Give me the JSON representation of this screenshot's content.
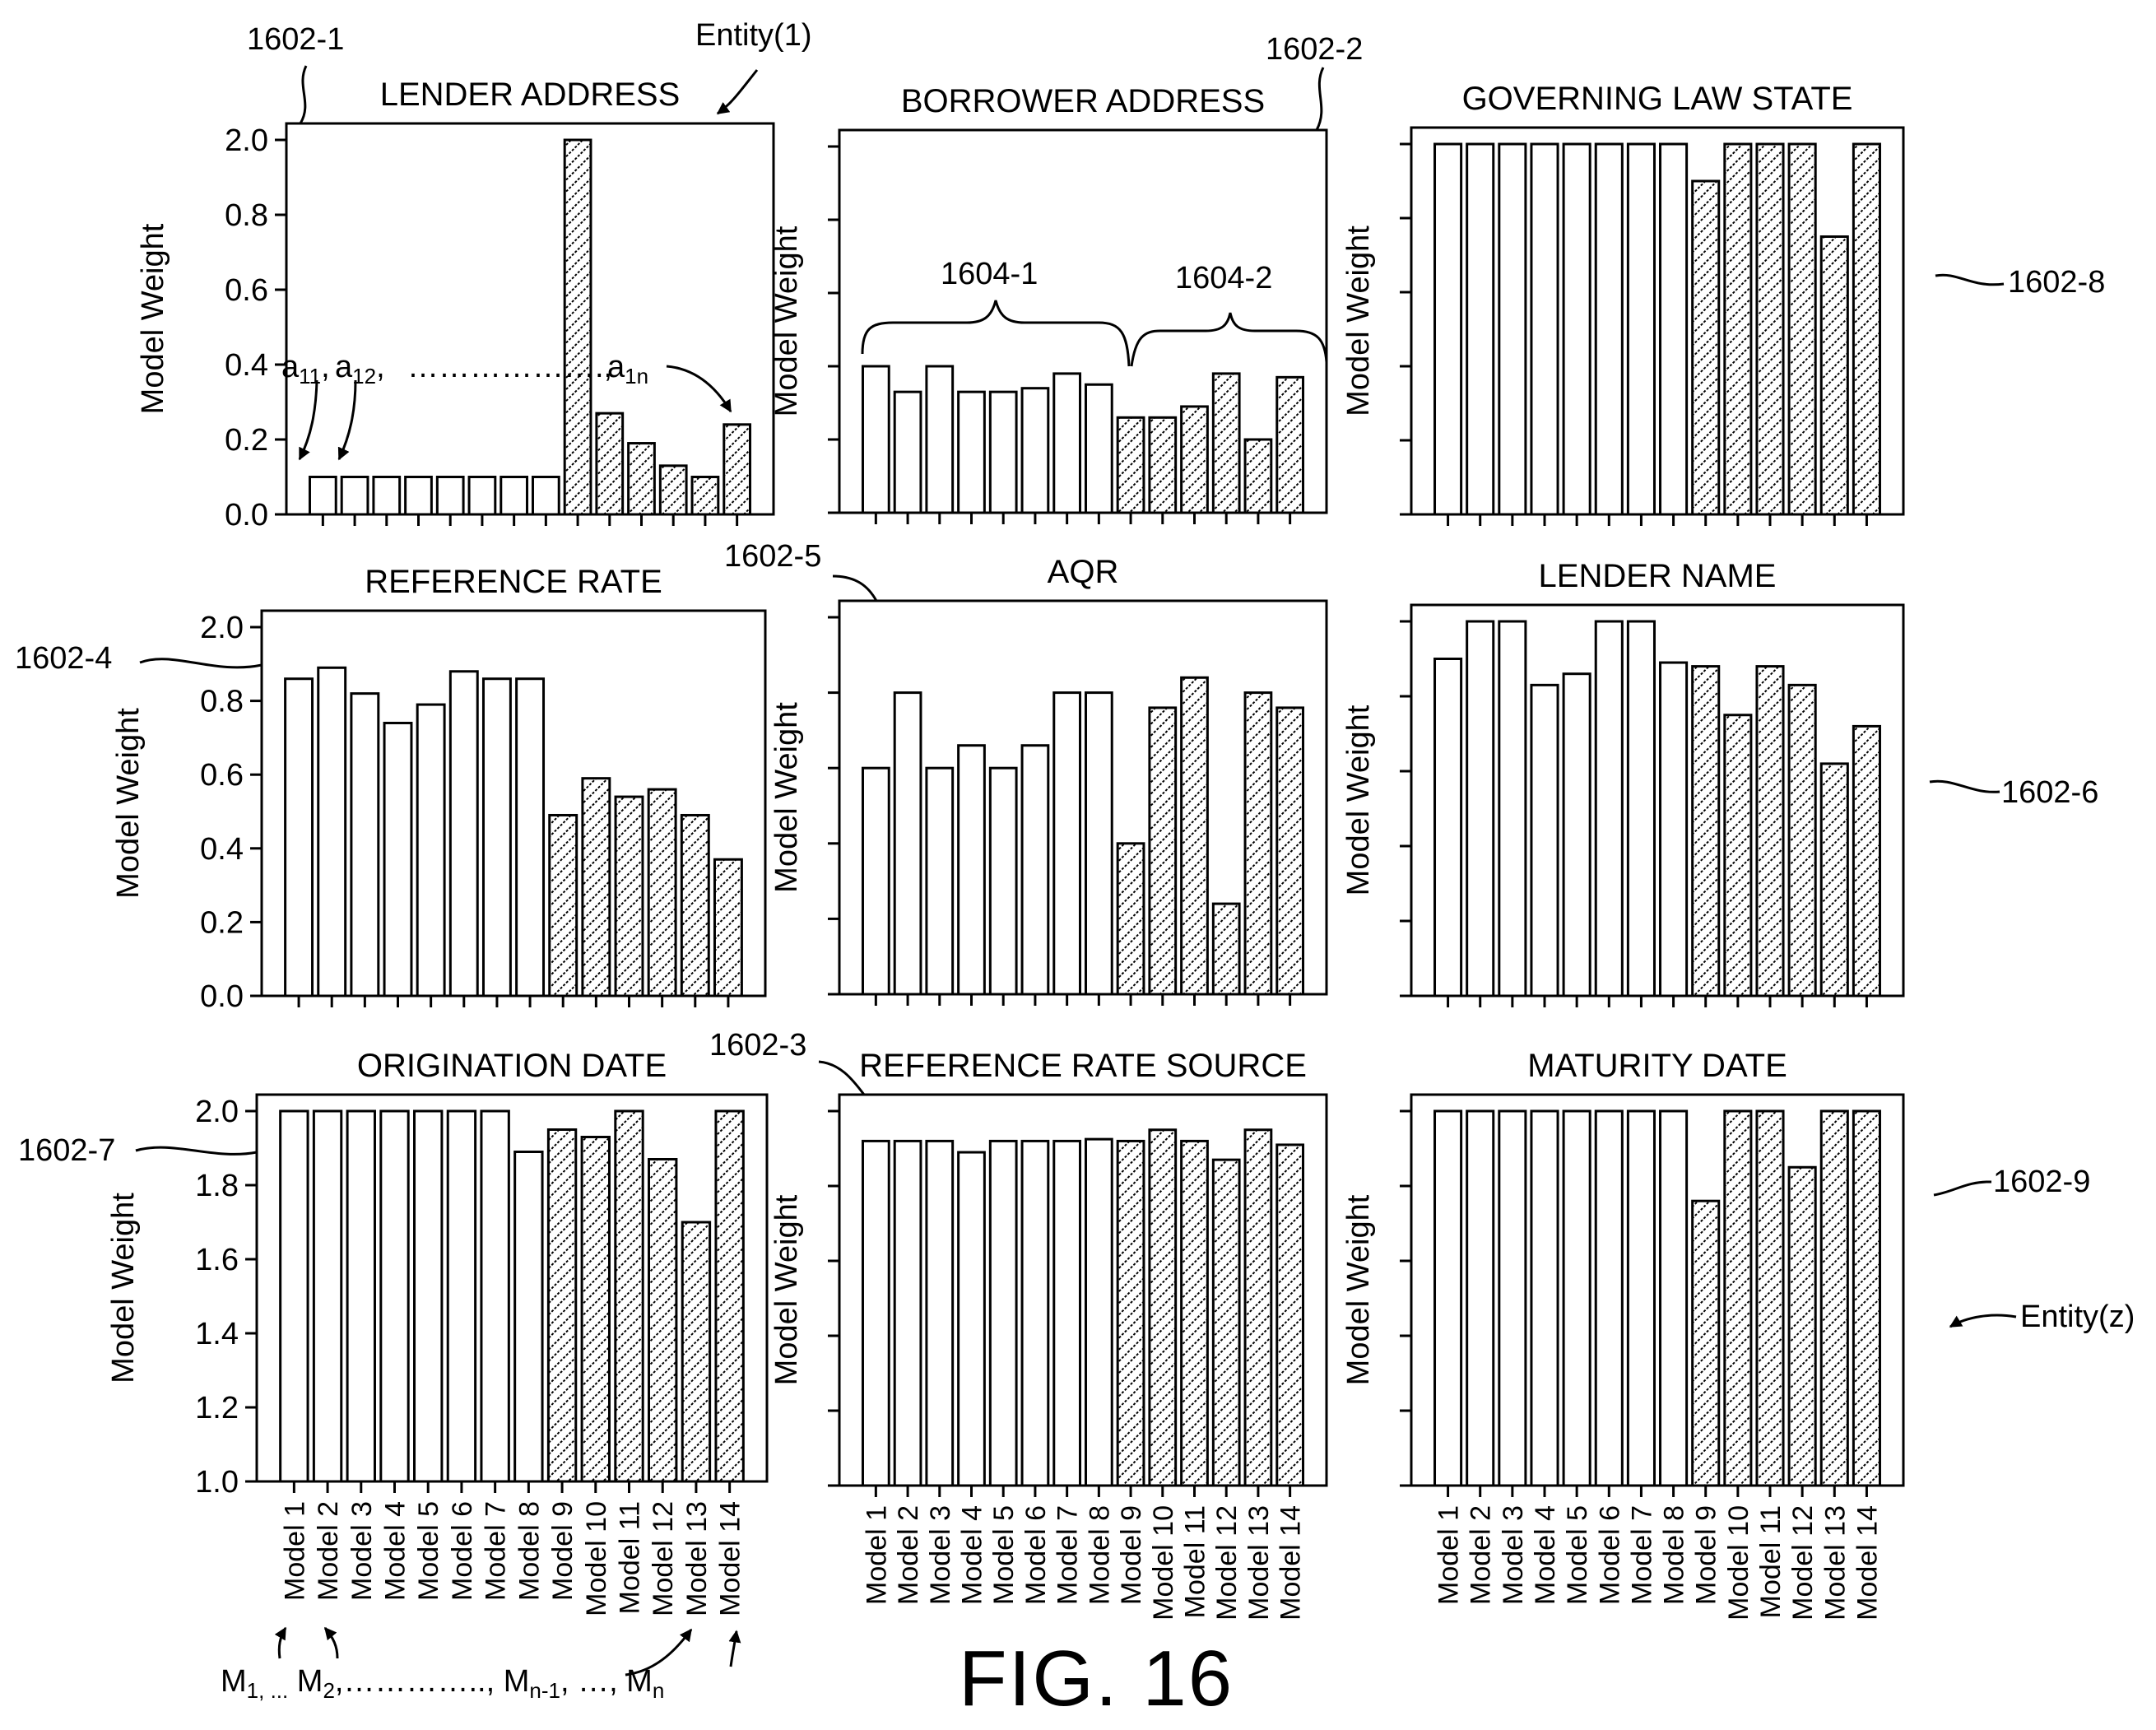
{
  "figure": {
    "caption": "FIG. 16",
    "tick_labels_y": [
      "0.0",
      "0.2",
      "0.4",
      "0.6",
      "0.8",
      "2.0"
    ],
    "tick_labels_y_bottom": [
      "1.0",
      "1.2",
      "1.4",
      "1.6",
      "1.8",
      "2.0"
    ],
    "model_labels": [
      "Model 1",
      "Model 2",
      "Model 3",
      "Model 4",
      "Model 5",
      "Model 6",
      "Model 7",
      "Model 8",
      "Model 9",
      "Model 10",
      "Model 11",
      "Model 12",
      "Model 13",
      "Model 14"
    ],
    "annotations": {
      "entity_1": "Entity(1)",
      "entity_z": "Entity(z)",
      "ref_1602_1": "1602-1",
      "ref_1602_2": "1602-2",
      "ref_1602_3": "1602-3",
      "ref_1602_4": "1602-4",
      "ref_1602_5": "1602-5",
      "ref_1602_6": "1602-6",
      "ref_1602_7": "1602-7",
      "ref_1602_8": "1602-8",
      "ref_1602_9": "1602-9",
      "ref_1604_1": "1604-1",
      "ref_1604_2": "1604-2",
      "a_11": "a11",
      "a_12": "a12",
      "a_dots": ", ……………….,",
      "a_1n": "a1n",
      "m_sequence": "M1, ... M2,………….., Mn-1, …, Mn"
    },
    "colors": {
      "ink": "#000000",
      "background": "#ffffff",
      "hatch": "#000000"
    }
  },
  "chart_data": [
    {
      "id": "1602-1",
      "type": "bar",
      "title": "LENDER ADDRESS",
      "ylabel": "Model Weight",
      "ylim": [
        0,
        1.0
      ],
      "categories": [
        "Model 1",
        "Model 2",
        "Model 3",
        "Model 4",
        "Model 5",
        "Model 6",
        "Model 7",
        "Model 8",
        "Model 9",
        "Model 10",
        "Model 11",
        "Model 12",
        "Model 13",
        "Model 14"
      ],
      "values": [
        0.1,
        0.1,
        0.1,
        0.1,
        0.1,
        0.1,
        0.1,
        0.1,
        1.0,
        0.27,
        0.19,
        0.13,
        0.1,
        0.24
      ],
      "hatched_from_index": 8
    },
    {
      "id": "1602-2",
      "type": "bar",
      "title": "BORROWER ADDRESS",
      "ylabel": "Model Weight",
      "ylim": [
        0,
        1.0
      ],
      "categories": [
        "Model 1",
        "Model 2",
        "Model 3",
        "Model 4",
        "Model 5",
        "Model 6",
        "Model 7",
        "Model 8",
        "Model 9",
        "Model 10",
        "Model 11",
        "Model 12",
        "Model 13",
        "Model 14"
      ],
      "values": [
        0.4,
        0.33,
        0.4,
        0.33,
        0.33,
        0.34,
        0.38,
        0.35,
        0.26,
        0.26,
        0.29,
        0.38,
        0.2,
        0.37
      ],
      "hatched_from_index": 8
    },
    {
      "id": "1602-8",
      "type": "bar",
      "title": "GOVERNING LAW STATE",
      "ylabel": "Model Weight",
      "ylim": [
        0,
        1.0
      ],
      "categories": [
        "Model 1",
        "Model 2",
        "Model 3",
        "Model 4",
        "Model 5",
        "Model 6",
        "Model 7",
        "Model 8",
        "Model 9",
        "Model 10",
        "Model 11",
        "Model 12",
        "Model 13",
        "Model 14"
      ],
      "values": [
        1.0,
        1.0,
        1.0,
        1.0,
        1.0,
        1.0,
        1.0,
        1.0,
        0.9,
        1.0,
        1.0,
        1.0,
        0.75,
        1.0
      ],
      "hatched_from_index": 8
    },
    {
      "id": "1602-4",
      "type": "bar",
      "title": "REFERENCE RATE",
      "ylabel": "Model Weight",
      "ylim": [
        0,
        1.0
      ],
      "categories": [
        "Model 1",
        "Model 2",
        "Model 3",
        "Model 4",
        "Model 5",
        "Model 6",
        "Model 7",
        "Model 8",
        "Model 9",
        "Model 10",
        "Model 11",
        "Model 12",
        "Model 13",
        "Model 14"
      ],
      "values": [
        0.86,
        0.89,
        0.82,
        0.74,
        0.79,
        0.88,
        0.86,
        0.86,
        0.49,
        0.59,
        0.54,
        0.56,
        0.49,
        0.37
      ],
      "hatched_from_index": 8
    },
    {
      "id": "1602-5",
      "type": "bar",
      "title": "AQR",
      "ylabel": "Model Weight",
      "ylim": [
        0,
        1.0
      ],
      "categories": [
        "Model 1",
        "Model 2",
        "Model 3",
        "Model 4",
        "Model 5",
        "Model 6",
        "Model 7",
        "Model 8",
        "Model 9",
        "Model 10",
        "Model 11",
        "Model 12",
        "Model 13",
        "Model 14"
      ],
      "values": [
        0.6,
        0.8,
        0.6,
        0.66,
        0.6,
        0.66,
        0.8,
        0.8,
        0.4,
        0.76,
        0.84,
        0.24,
        0.8,
        0.76
      ],
      "hatched_from_index": 8
    },
    {
      "id": "1602-6",
      "type": "bar",
      "title": "LENDER NAME",
      "ylabel": "Model Weight",
      "ylim": [
        0,
        1.0
      ],
      "categories": [
        "Model 1",
        "Model 2",
        "Model 3",
        "Model 4",
        "Model 5",
        "Model 6",
        "Model 7",
        "Model 8",
        "Model 9",
        "Model 10",
        "Model 11",
        "Model 12",
        "Model 13",
        "Model 14"
      ],
      "values": [
        0.9,
        1.0,
        1.0,
        0.83,
        0.86,
        1.0,
        1.0,
        0.89,
        0.88,
        0.75,
        0.88,
        0.83,
        0.62,
        0.72
      ],
      "hatched_from_index": 8
    },
    {
      "id": "1602-7",
      "type": "bar",
      "title": "ORIGINATION DATE",
      "ylabel": "Model Weight",
      "ylim": [
        1.0,
        2.0
      ],
      "categories": [
        "Model 1",
        "Model 2",
        "Model 3",
        "Model 4",
        "Model 5",
        "Model 6",
        "Model 7",
        "Model 8",
        "Model 9",
        "Model 10",
        "Model 11",
        "Model 12",
        "Model 13",
        "Model 14"
      ],
      "values": [
        2.0,
        2.0,
        2.0,
        2.0,
        2.0,
        2.0,
        2.0,
        1.89,
        1.95,
        1.93,
        2.0,
        1.87,
        1.7,
        2.0
      ],
      "hatched_from_index": 8
    },
    {
      "id": "1602-3",
      "type": "bar",
      "title": "REFERENCE RATE SOURCE",
      "ylabel": "Model Weight",
      "ylim": [
        1.0,
        2.0
      ],
      "categories": [
        "Model 1",
        "Model 2",
        "Model 3",
        "Model 4",
        "Model 5",
        "Model 6",
        "Model 7",
        "Model 8",
        "Model 9",
        "Model 10",
        "Model 11",
        "Model 12",
        "Model 13",
        "Model 14"
      ],
      "values": [
        1.92,
        1.92,
        1.92,
        1.89,
        1.92,
        1.92,
        1.92,
        1.925,
        1.92,
        1.95,
        1.92,
        1.87,
        1.95,
        1.91
      ],
      "hatched_from_index": 8
    },
    {
      "id": "1602-9",
      "type": "bar",
      "title": "MATURITY DATE",
      "ylabel": "Model Weight",
      "ylim": [
        1.0,
        2.0
      ],
      "categories": [
        "Model 1",
        "Model 2",
        "Model 3",
        "Model 4",
        "Model 5",
        "Model 6",
        "Model 7",
        "Model 8",
        "Model 9",
        "Model 10",
        "Model 11",
        "Model 12",
        "Model 13",
        "Model 14"
      ],
      "values": [
        2.0,
        2.0,
        2.0,
        2.0,
        2.0,
        2.0,
        2.0,
        2.0,
        1.76,
        2.0,
        2.0,
        1.85,
        2.0,
        2.0
      ],
      "hatched_from_index": 8
    }
  ]
}
